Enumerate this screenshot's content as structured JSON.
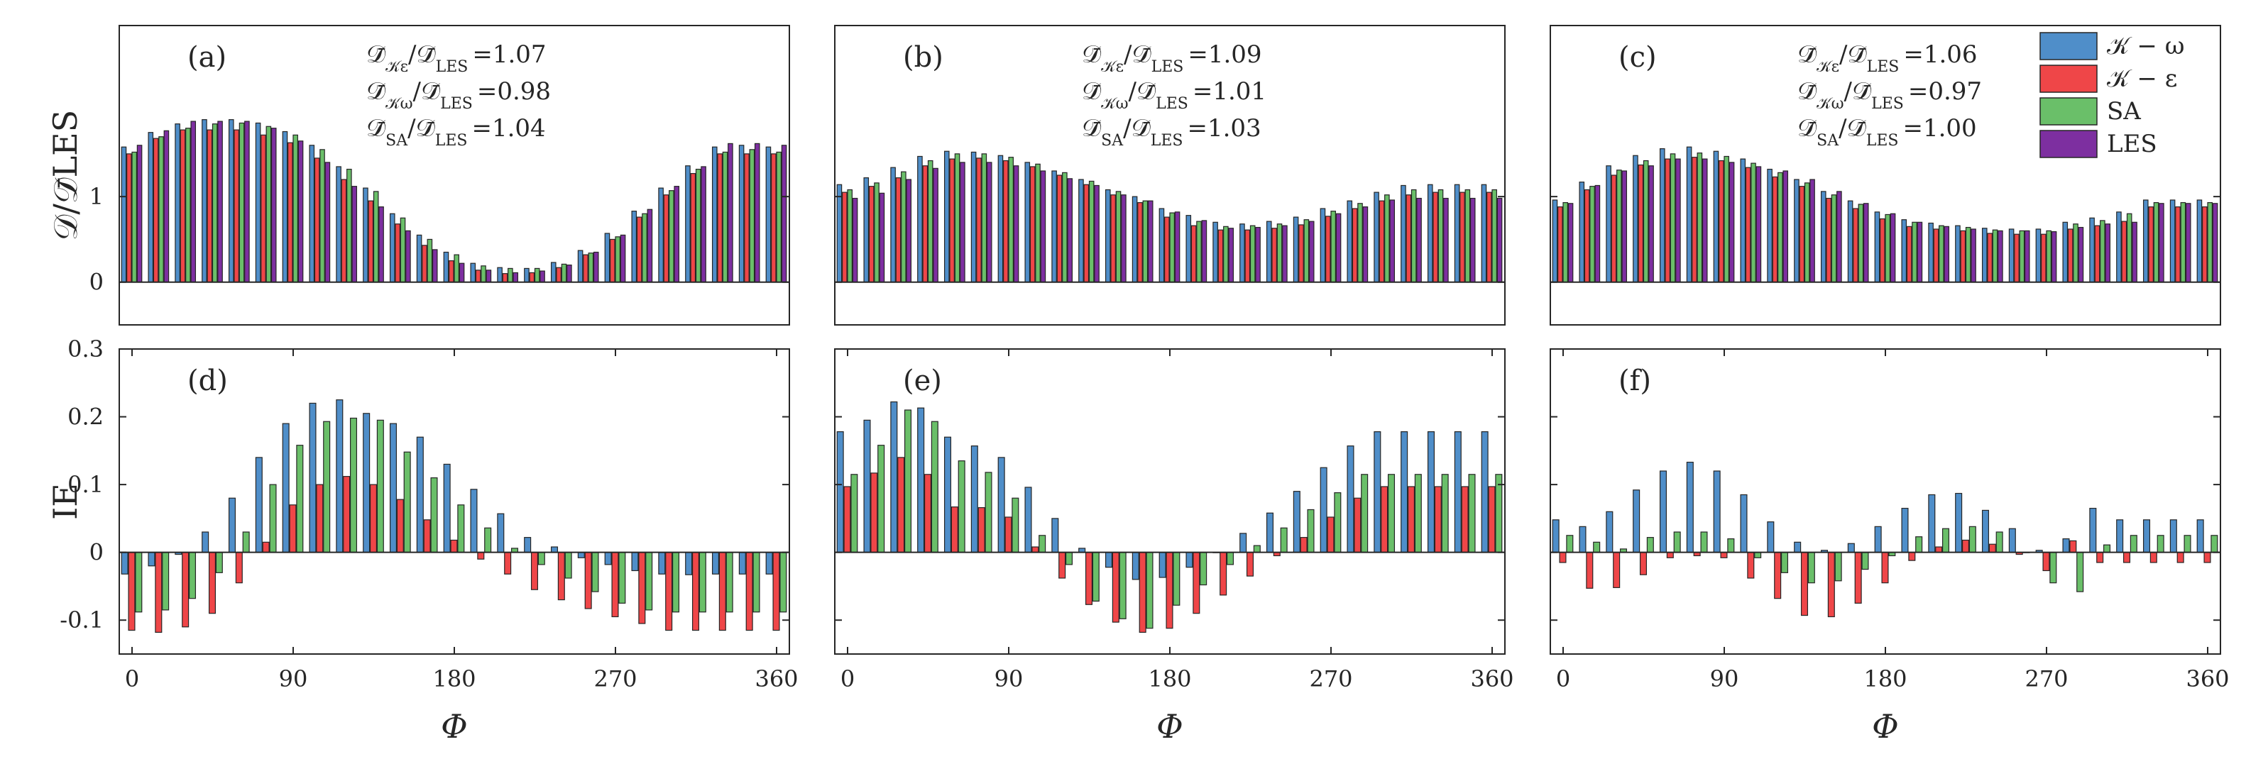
{
  "colors": {
    "K-omega": "#4f8ec9",
    "K-epsilon": "#ef4648",
    "SA": "#6abf69",
    "LES": "#7d2fa0",
    "axis": "#262626"
  },
  "legend": {
    "items": [
      {
        "key": "K-omega",
        "label": "𝒦 − ω"
      },
      {
        "key": "K-epsilon",
        "label": "𝒦 − ε"
      },
      {
        "key": "SA",
        "label": "SA"
      },
      {
        "key": "LES",
        "label": "LES"
      }
    ]
  },
  "chart_data": [
    {
      "panel": "(a)",
      "type": "bar",
      "row": "top",
      "ylabel": "𝒟/𝒟̄LES",
      "xlabel": "",
      "ylim": [
        -0.5,
        3.0
      ],
      "yticks": [
        0,
        1
      ],
      "xticks": [],
      "x": [
        0,
        15,
        30,
        45,
        60,
        75,
        90,
        105,
        120,
        135,
        150,
        165,
        180,
        195,
        210,
        225,
        240,
        255,
        270,
        285,
        300,
        315,
        330,
        345,
        360
      ],
      "ratios": [
        {
          "num": "𝒦ε",
          "value": "=1.07"
        },
        {
          "num": "𝒦ω",
          "value": "=0.98"
        },
        {
          "num": "SA",
          "value": "=1.04"
        }
      ],
      "series": [
        {
          "name": "K-omega",
          "values": [
            1.58,
            1.75,
            1.85,
            1.9,
            1.9,
            1.86,
            1.76,
            1.6,
            1.35,
            1.1,
            0.8,
            0.55,
            0.35,
            0.22,
            0.17,
            0.16,
            0.23,
            0.37,
            0.57,
            0.83,
            1.1,
            1.36,
            1.58,
            1.6,
            1.58
          ]
        },
        {
          "name": "K-epsilon",
          "values": [
            1.5,
            1.68,
            1.78,
            1.78,
            1.78,
            1.72,
            1.63,
            1.45,
            1.2,
            0.95,
            0.68,
            0.43,
            0.25,
            0.14,
            0.1,
            0.11,
            0.17,
            0.32,
            0.5,
            0.76,
            1.02,
            1.27,
            1.5,
            1.5,
            1.5
          ]
        },
        {
          "name": "SA",
          "values": [
            1.52,
            1.7,
            1.8,
            1.85,
            1.86,
            1.82,
            1.72,
            1.55,
            1.32,
            1.06,
            0.75,
            0.5,
            0.32,
            0.19,
            0.16,
            0.16,
            0.21,
            0.34,
            0.53,
            0.8,
            1.07,
            1.32,
            1.52,
            1.55,
            1.52
          ]
        },
        {
          "name": "LES",
          "values": [
            1.6,
            1.77,
            1.88,
            1.88,
            1.88,
            1.8,
            1.65,
            1.4,
            1.12,
            0.88,
            0.6,
            0.38,
            0.22,
            0.14,
            0.11,
            0.13,
            0.2,
            0.35,
            0.55,
            0.85,
            1.12,
            1.35,
            1.62,
            1.62,
            1.6
          ]
        }
      ]
    },
    {
      "panel": "(b)",
      "type": "bar",
      "row": "top",
      "ylabel": "",
      "xlabel": "",
      "ylim": [
        -0.5,
        3.0
      ],
      "yticks": [
        0,
        1
      ],
      "xticks": [],
      "x": [
        0,
        15,
        30,
        45,
        60,
        75,
        90,
        105,
        120,
        135,
        150,
        165,
        180,
        195,
        210,
        225,
        240,
        255,
        270,
        285,
        300,
        315,
        330,
        345,
        360
      ],
      "ratios": [
        {
          "num": "𝒦ε",
          "value": "=1.09"
        },
        {
          "num": "𝒦ω",
          "value": "=1.01"
        },
        {
          "num": "SA",
          "value": "=1.03"
        }
      ],
      "series": [
        {
          "name": "K-omega",
          "values": [
            1.14,
            1.22,
            1.34,
            1.47,
            1.53,
            1.52,
            1.48,
            1.4,
            1.3,
            1.2,
            1.08,
            1.0,
            0.86,
            0.78,
            0.7,
            0.68,
            0.71,
            0.76,
            0.86,
            0.95,
            1.05,
            1.13,
            1.14,
            1.14,
            1.14
          ]
        },
        {
          "name": "K-epsilon",
          "values": [
            1.05,
            1.12,
            1.22,
            1.36,
            1.44,
            1.45,
            1.42,
            1.35,
            1.25,
            1.14,
            1.02,
            0.93,
            0.76,
            0.66,
            0.61,
            0.61,
            0.63,
            0.67,
            0.77,
            0.86,
            0.95,
            1.02,
            1.05,
            1.05,
            1.05
          ]
        },
        {
          "name": "SA",
          "values": [
            1.08,
            1.16,
            1.29,
            1.42,
            1.5,
            1.5,
            1.46,
            1.38,
            1.28,
            1.18,
            1.06,
            0.95,
            0.81,
            0.71,
            0.65,
            0.66,
            0.68,
            0.73,
            0.83,
            0.92,
            1.02,
            1.08,
            1.08,
            1.08,
            1.08
          ]
        },
        {
          "name": "LES",
          "values": [
            0.98,
            1.04,
            1.2,
            1.33,
            1.4,
            1.4,
            1.36,
            1.3,
            1.21,
            1.13,
            1.02,
            0.95,
            0.82,
            0.72,
            0.63,
            0.64,
            0.66,
            0.71,
            0.8,
            0.88,
            0.96,
            0.98,
            0.98,
            0.98,
            0.98
          ]
        }
      ]
    },
    {
      "panel": "(c)",
      "type": "bar",
      "row": "top",
      "ylabel": "",
      "xlabel": "",
      "ylim": [
        -0.5,
        3.0
      ],
      "yticks": [
        0,
        1
      ],
      "xticks": [],
      "x": [
        0,
        15,
        30,
        45,
        60,
        75,
        90,
        105,
        120,
        135,
        150,
        165,
        180,
        195,
        210,
        225,
        240,
        255,
        270,
        285,
        300,
        315,
        330,
        345,
        360
      ],
      "ratios": [
        {
          "num": "𝒦ε",
          "value": "=1.06"
        },
        {
          "num": "𝒦ω",
          "value": "=0.97"
        },
        {
          "num": "SA",
          "value": "=1.00"
        }
      ],
      "series": [
        {
          "name": "K-omega",
          "values": [
            0.96,
            1.17,
            1.36,
            1.48,
            1.56,
            1.58,
            1.53,
            1.44,
            1.32,
            1.2,
            1.06,
            0.95,
            0.82,
            0.73,
            0.69,
            0.66,
            0.63,
            0.62,
            0.62,
            0.7,
            0.75,
            0.82,
            0.96,
            0.96,
            0.96
          ]
        },
        {
          "name": "K-epsilon",
          "values": [
            0.88,
            1.08,
            1.25,
            1.37,
            1.44,
            1.46,
            1.42,
            1.34,
            1.23,
            1.12,
            0.98,
            0.86,
            0.74,
            0.65,
            0.62,
            0.6,
            0.57,
            0.56,
            0.56,
            0.62,
            0.66,
            0.71,
            0.88,
            0.88,
            0.88
          ]
        },
        {
          "name": "SA",
          "values": [
            0.93,
            1.12,
            1.31,
            1.42,
            1.5,
            1.51,
            1.47,
            1.39,
            1.28,
            1.16,
            1.02,
            0.91,
            0.79,
            0.7,
            0.66,
            0.64,
            0.61,
            0.6,
            0.6,
            0.68,
            0.72,
            0.8,
            0.93,
            0.93,
            0.93
          ]
        },
        {
          "name": "LES",
          "values": [
            0.92,
            1.13,
            1.3,
            1.36,
            1.44,
            1.44,
            1.4,
            1.35,
            1.3,
            1.2,
            1.06,
            0.92,
            0.8,
            0.7,
            0.65,
            0.62,
            0.6,
            0.6,
            0.59,
            0.64,
            0.68,
            0.7,
            0.92,
            0.92,
            0.92
          ]
        }
      ]
    },
    {
      "panel": "(d)",
      "type": "bar",
      "row": "bottom",
      "ylabel": "IE",
      "xlabel": "Φ",
      "ylim": [
        -0.15,
        0.3
      ],
      "yticks": [
        -0.1,
        0,
        0.1,
        0.2,
        0.3
      ],
      "ytick_labels": [
        "-0.1",
        "0",
        "0.1",
        "0.2",
        "0.3"
      ],
      "xticks": [
        0,
        90,
        180,
        270,
        360
      ],
      "x": [
        0,
        15,
        30,
        45,
        60,
        75,
        90,
        105,
        120,
        135,
        150,
        165,
        180,
        195,
        210,
        225,
        240,
        255,
        270,
        285,
        300,
        315,
        330,
        345,
        360
      ],
      "series": [
        {
          "name": "K-omega",
          "values": [
            -0.032,
            -0.02,
            -0.003,
            0.03,
            0.08,
            0.14,
            0.19,
            0.22,
            0.225,
            0.205,
            0.19,
            0.17,
            0.13,
            0.093,
            0.057,
            0.022,
            0.008,
            -0.008,
            -0.018,
            -0.027,
            -0.032,
            -0.033,
            -0.032,
            -0.032,
            -0.032
          ]
        },
        {
          "name": "K-epsilon",
          "values": [
            -0.115,
            -0.118,
            -0.11,
            -0.09,
            -0.045,
            0.015,
            0.07,
            0.1,
            0.112,
            0.1,
            0.078,
            0.048,
            0.018,
            -0.01,
            -0.032,
            -0.055,
            -0.07,
            -0.083,
            -0.095,
            -0.105,
            -0.115,
            -0.115,
            -0.115,
            -0.115,
            -0.115
          ]
        },
        {
          "name": "SA",
          "values": [
            -0.088,
            -0.085,
            -0.068,
            -0.03,
            0.03,
            0.1,
            0.158,
            0.193,
            0.198,
            0.195,
            0.148,
            0.11,
            0.07,
            0.036,
            0.006,
            -0.018,
            -0.038,
            -0.058,
            -0.075,
            -0.085,
            -0.088,
            -0.088,
            -0.088,
            -0.088,
            -0.088
          ]
        }
      ]
    },
    {
      "panel": "(e)",
      "type": "bar",
      "row": "bottom",
      "ylabel": "",
      "xlabel": "Φ",
      "ylim": [
        -0.15,
        0.3
      ],
      "yticks": [
        -0.1,
        0,
        0.1,
        0.2,
        0.3
      ],
      "xticks": [
        0,
        90,
        180,
        270,
        360
      ],
      "x": [
        0,
        15,
        30,
        45,
        60,
        75,
        90,
        105,
        120,
        135,
        150,
        165,
        180,
        195,
        210,
        225,
        240,
        255,
        270,
        285,
        300,
        315,
        330,
        345,
        360
      ],
      "series": [
        {
          "name": "K-omega",
          "values": [
            0.178,
            0.195,
            0.222,
            0.213,
            0.17,
            0.157,
            0.14,
            0.096,
            0.05,
            0.006,
            -0.022,
            -0.04,
            -0.037,
            -0.022,
            0.0,
            0.028,
            0.058,
            0.09,
            0.125,
            0.157,
            0.178,
            0.178,
            0.178,
            0.178,
            0.178
          ]
        },
        {
          "name": "K-epsilon",
          "values": [
            0.097,
            0.117,
            0.14,
            0.115,
            0.067,
            0.066,
            0.052,
            0.008,
            -0.038,
            -0.077,
            -0.103,
            -0.118,
            -0.112,
            -0.09,
            -0.063,
            -0.035,
            -0.005,
            0.022,
            0.052,
            0.08,
            0.097,
            0.097,
            0.097,
            0.097,
            0.097
          ]
        },
        {
          "name": "SA",
          "values": [
            0.115,
            0.158,
            0.21,
            0.193,
            0.135,
            0.118,
            0.08,
            0.025,
            -0.018,
            -0.072,
            -0.098,
            -0.112,
            -0.078,
            -0.048,
            -0.018,
            0.01,
            0.036,
            0.063,
            0.088,
            0.115,
            0.115,
            0.115,
            0.115,
            0.115,
            0.115
          ]
        }
      ]
    },
    {
      "panel": "(f)",
      "type": "bar",
      "row": "bottom",
      "ylabel": "",
      "xlabel": "Φ",
      "ylim": [
        -0.15,
        0.3
      ],
      "yticks": [
        -0.1,
        0,
        0.1,
        0.2,
        0.3
      ],
      "xticks": [
        0,
        90,
        180,
        270,
        360
      ],
      "x": [
        0,
        15,
        30,
        45,
        60,
        75,
        90,
        105,
        120,
        135,
        150,
        165,
        180,
        195,
        210,
        225,
        240,
        255,
        270,
        285,
        300,
        315,
        330,
        345,
        360
      ],
      "series": [
        {
          "name": "K-omega",
          "values": [
            0.048,
            0.038,
            0.06,
            0.092,
            0.12,
            0.133,
            0.12,
            0.085,
            0.045,
            0.015,
            0.003,
            0.013,
            0.038,
            0.065,
            0.085,
            0.087,
            0.062,
            0.035,
            0.003,
            0.02,
            0.065,
            0.048,
            0.048,
            0.048,
            0.048
          ]
        },
        {
          "name": "K-epsilon",
          "values": [
            -0.015,
            -0.053,
            -0.052,
            -0.033,
            -0.008,
            -0.005,
            -0.008,
            -0.038,
            -0.068,
            -0.093,
            -0.095,
            -0.075,
            -0.045,
            -0.012,
            0.008,
            0.018,
            0.012,
            -0.003,
            -0.027,
            0.017,
            -0.015,
            -0.015,
            -0.015,
            -0.015,
            -0.015
          ]
        },
        {
          "name": "SA",
          "values": [
            0.025,
            0.015,
            0.005,
            0.022,
            0.03,
            0.03,
            0.02,
            -0.008,
            -0.03,
            -0.045,
            -0.042,
            -0.025,
            -0.005,
            0.023,
            0.035,
            0.038,
            0.03,
            0.0,
            -0.045,
            -0.058,
            0.011,
            0.025,
            0.025,
            0.025,
            0.025
          ]
        }
      ]
    }
  ]
}
